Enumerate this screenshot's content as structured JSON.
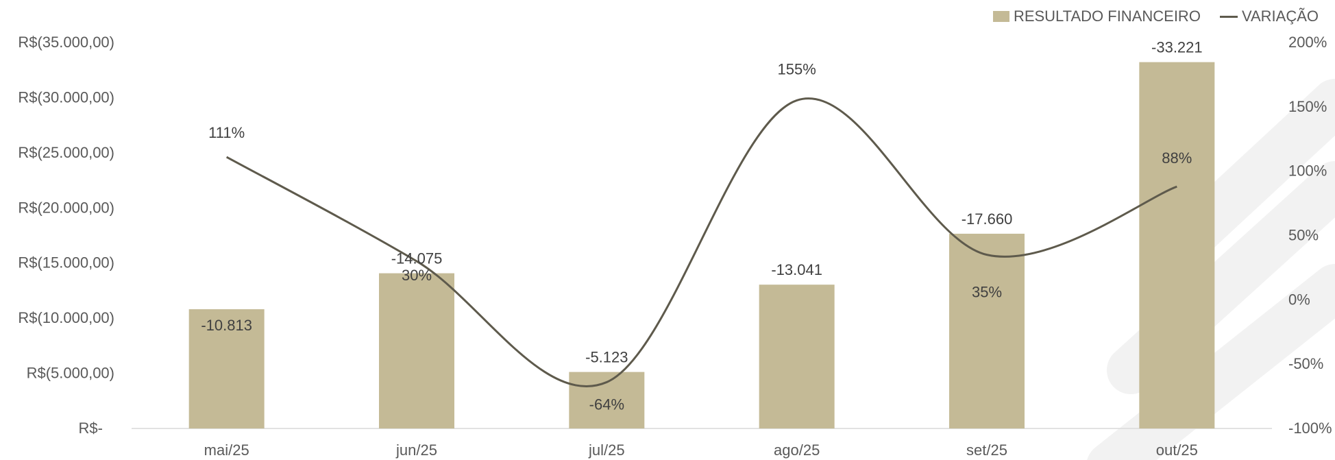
{
  "chart_data": {
    "type": "bar",
    "categories": [
      "mai/25",
      "jun/25",
      "jul/25",
      "ago/25",
      "set/25",
      "out/25"
    ],
    "series": [
      {
        "name": "RESULTADO FINANCEIRO",
        "kind": "bar",
        "axis": "left",
        "values": [
          -10813,
          -14075,
          -5123,
          -13041,
          -17660,
          -33221
        ],
        "labels": [
          "-10.813",
          "-14.075",
          "-5.123",
          "-13.041",
          "-17.660",
          "-33.221"
        ]
      },
      {
        "name": "VARIAÇÃO",
        "kind": "line",
        "axis": "right",
        "values": [
          111,
          30,
          -64,
          155,
          35,
          88
        ],
        "labels": [
          "111%",
          "30%",
          "-64%",
          "155%",
          "35%",
          "88%"
        ]
      }
    ],
    "left_axis": {
      "min": 0,
      "max": 35000,
      "ticks": [
        "R$-",
        "R$(5.000,00)",
        "R$(10.000,00)",
        "R$(15.000,00)",
        "R$(20.000,00)",
        "R$(25.000,00)",
        "R$(30.000,00)",
        "R$(35.000,00)"
      ]
    },
    "right_axis": {
      "min": -100,
      "max": 200,
      "ticks": [
        "-100%",
        "-50%",
        "0%",
        "50%",
        "100%",
        "150%",
        "200%"
      ]
    },
    "legend_position": "top-right",
    "grid": false,
    "colors": {
      "bar": "#C4BA96",
      "line": "#5E5A4C",
      "text": "#595959",
      "axis": "#D9D9D9"
    }
  }
}
